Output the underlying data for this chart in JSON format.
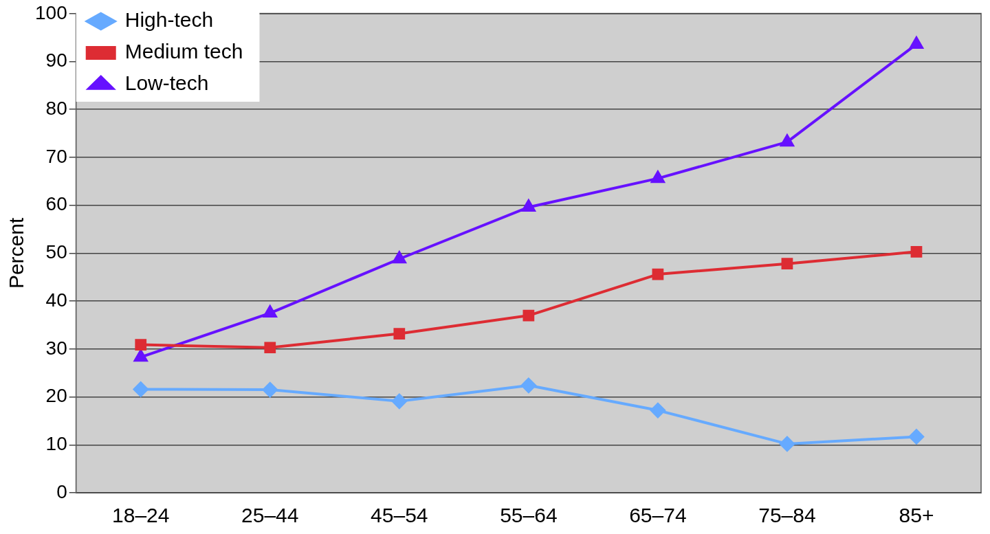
{
  "chart_data": {
    "type": "line",
    "ylabel": "Percent",
    "categories": [
      "18–24",
      "25–44",
      "45–54",
      "55–64",
      "65–74",
      "75–84",
      "85+"
    ],
    "series": [
      {
        "name": "High-tech",
        "color": "#66aaff",
        "marker": "diamond",
        "values": [
          21.6,
          21.5,
          19.1,
          22.4,
          17.2,
          10.2,
          11.7
        ]
      },
      {
        "name": "Medium tech",
        "color": "#dd2c33",
        "marker": "square",
        "values": [
          30.9,
          30.3,
          33.2,
          37.0,
          45.6,
          47.8,
          50.3
        ]
      },
      {
        "name": "Low-tech",
        "color": "#6611ff",
        "marker": "triangle",
        "values": [
          28.3,
          37.5,
          48.8,
          59.6,
          65.6,
          73.2,
          93.6
        ]
      }
    ],
    "ylim": [
      0,
      100
    ],
    "yticks": [
      0,
      10,
      20,
      30,
      40,
      50,
      60,
      70,
      80,
      90,
      100
    ],
    "grid": "y",
    "legend": "top left"
  }
}
